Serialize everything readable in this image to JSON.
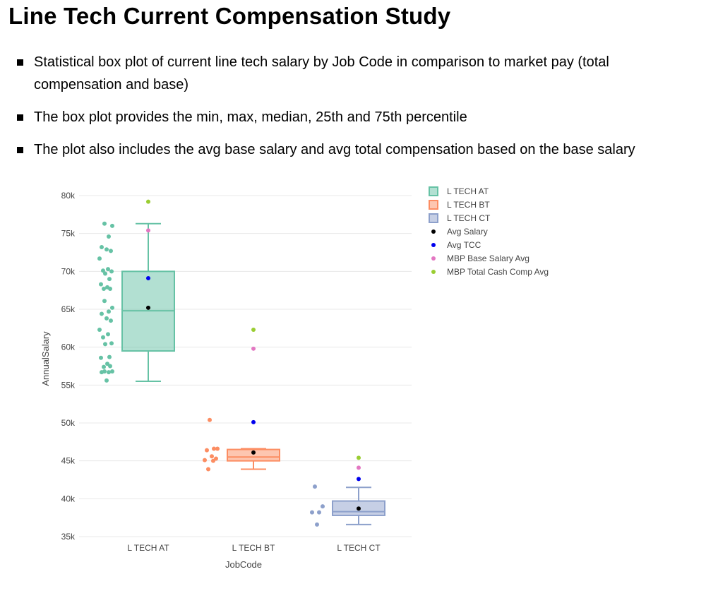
{
  "title": "Line Tech Current Compensation Study",
  "bullets": [
    "Statistical box plot of current line tech salary by Job Code in comparison to market pay (total compensation and base)",
    "The box plot provides the min, max, median, 25th and 75th percentile",
    "The plot also includes the avg base salary and avg total compensation based on the base salary"
  ],
  "chart_data": {
    "type": "box",
    "xlabel": "JobCode",
    "ylabel": "AnnualSalary",
    "ylim": [
      35000,
      80000
    ],
    "yticks": [
      35000,
      40000,
      45000,
      50000,
      55000,
      60000,
      65000,
      70000,
      75000,
      80000
    ],
    "ytick_labels": [
      "35k",
      "40k",
      "45k",
      "50k",
      "55k",
      "60k",
      "65k",
      "70k",
      "75k",
      "80k"
    ],
    "categories": [
      "L TECH AT",
      "L TECH BT",
      "L TECH CT"
    ],
    "grid": true,
    "legend_position": "top-right",
    "series": [
      {
        "name": "L TECH AT",
        "color": "#66c2a5",
        "min": 55500,
        "q1": 59500,
        "median": 64800,
        "q3": 70000,
        "max": 76300,
        "points": [
          76300,
          76000,
          74600,
          73200,
          72900,
          72700,
          71700,
          70300,
          70100,
          70000,
          69700,
          69000,
          68300,
          67900,
          67700,
          67700,
          66100,
          65200,
          64700,
          64400,
          63800,
          63500,
          62300,
          61700,
          61300,
          60500,
          60400,
          58700,
          58600,
          57800,
          57500,
          57400,
          56800,
          56800,
          56700,
          56700,
          55600
        ]
      },
      {
        "name": "L TECH BT",
        "color": "#fc8d62",
        "min": 43900,
        "q1": 45000,
        "median": 45500,
        "q3": 46500,
        "max": 46600,
        "points": [
          50400,
          46600,
          46600,
          46400,
          45600,
          45300,
          45100,
          45000,
          43900
        ]
      },
      {
        "name": "L TECH CT",
        "color": "#8da0cb",
        "min": 36600,
        "q1": 37800,
        "median": 38300,
        "q3": 39700,
        "max": 41500,
        "points": [
          41600,
          39000,
          38200,
          38200,
          36600
        ]
      }
    ],
    "markers": [
      {
        "name": "Avg Salary",
        "color": "#000000",
        "values": [
          65200,
          46100,
          38700
        ]
      },
      {
        "name": "Avg TCC",
        "color": "#0000ee",
        "values": [
          69100,
          50100,
          42600
        ]
      },
      {
        "name": "MBP Base Salary Avg",
        "color": "#e377c2",
        "values": [
          75400,
          59800,
          44100
        ]
      },
      {
        "name": "MBP Total Cash Comp Avg",
        "color": "#9acd32",
        "values": [
          79200,
          62300,
          45400
        ]
      }
    ]
  }
}
